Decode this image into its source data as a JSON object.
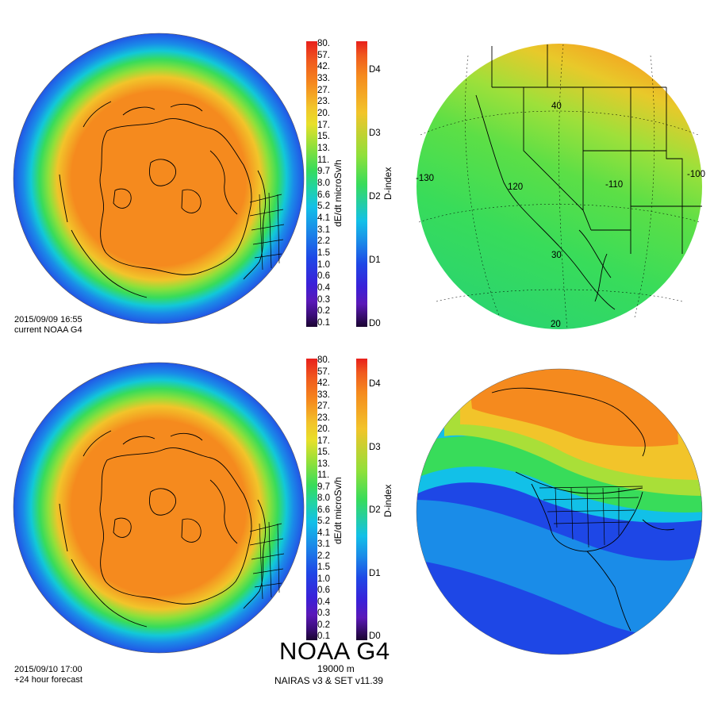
{
  "panels": [
    {
      "date": "2015/09/09 16:55",
      "label": "current NOAA G4"
    },
    {
      "date": "2015/09/10 17:00",
      "label": "+24 hour forecast"
    }
  ],
  "dose_colorbar": {
    "label": "dE/dt microSv/h",
    "ticks": [
      "80.",
      "57.",
      "42.",
      "33.",
      "27.",
      "23.",
      "20.",
      "17.",
      "15.",
      "13.",
      "11.",
      "9.7",
      "8.0",
      "6.6",
      "5.2",
      "4.1",
      "3.1",
      "2.2",
      "1.5",
      "1.0",
      "0.6",
      "0.4",
      "0.3",
      "0.2",
      "0.1"
    ]
  },
  "dindex_colorbar": {
    "label": "D-index",
    "ticks": [
      "D4",
      "D3",
      "D2",
      "D1",
      "D0"
    ]
  },
  "map_labels": {
    "lats": [
      "40",
      "30",
      "20"
    ],
    "lons": [
      "-130",
      "120",
      "-110",
      "-100"
    ]
  },
  "footer": {
    "title": "NOAA G4",
    "altitude": "19000 m",
    "model": "NAIRAS v3 & SET v11.39"
  },
  "colors": {
    "peak": "#f58a1e",
    "yellow": "#f2d22a",
    "green": "#52e04c",
    "cyan": "#12c0e8",
    "blue": "#1a5fe8",
    "deep_blue": "#1e47e6",
    "outline": "#000000"
  }
}
